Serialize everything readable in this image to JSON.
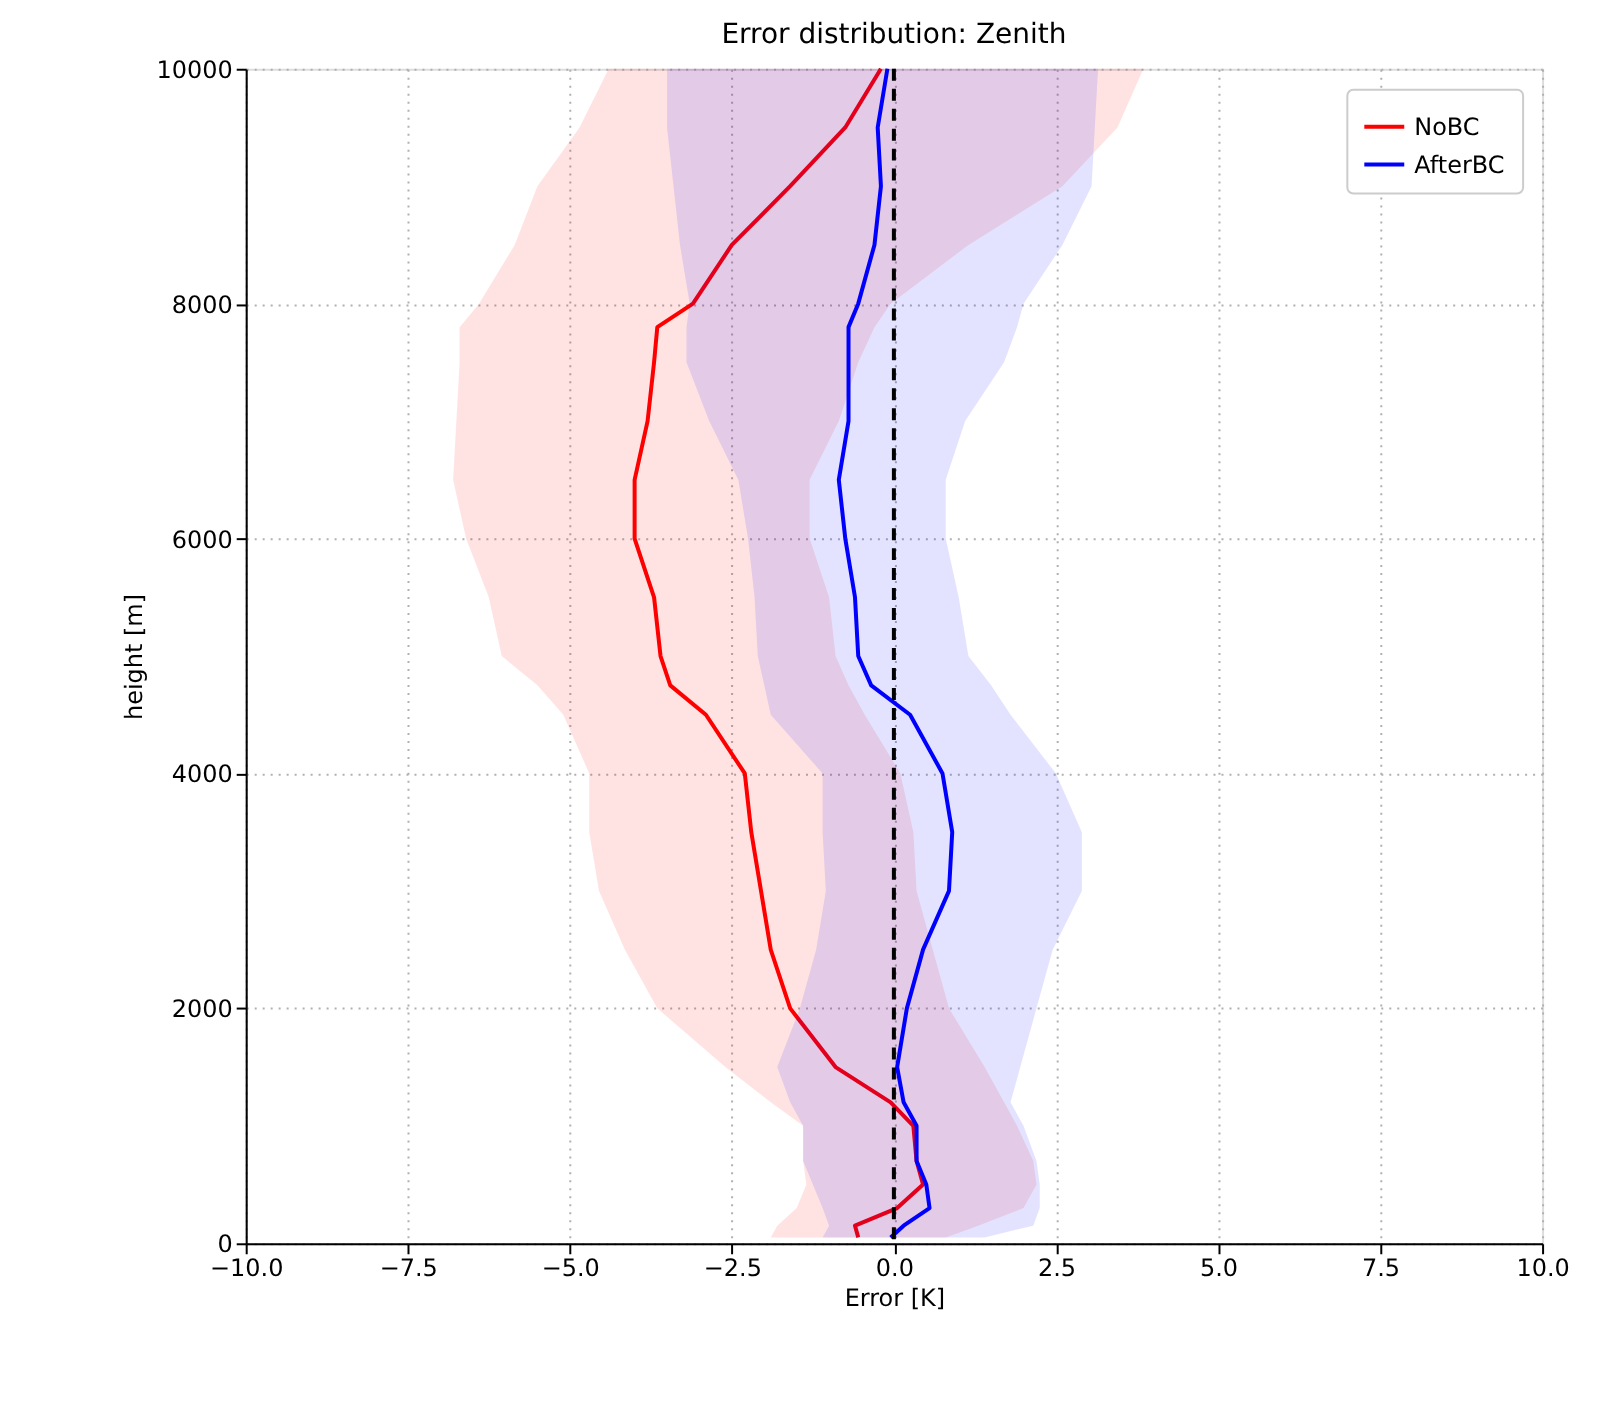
{
  "chart_data": {
    "type": "line",
    "orientation": "horizontal",
    "title": "Error distribution: Zenith",
    "xlabel": "Error [K]",
    "ylabel": "height [m]",
    "x": [
      50,
      150,
      300,
      500,
      700,
      1000,
      1200,
      1500,
      2000,
      2500,
      3000,
      3500,
      4000,
      4500,
      4750,
      5000,
      5500,
      6000,
      6500,
      7000,
      7500,
      7800,
      8000,
      8500,
      9000,
      9500,
      10000
    ],
    "series": [
      {
        "name": "NoBC",
        "color": "#ff0000",
        "values": [
          -0.55,
          -0.6,
          0.05,
          0.45,
          0.35,
          0.3,
          -0.05,
          -0.9,
          -1.6,
          -1.9,
          -2.05,
          -2.2,
          -2.3,
          -2.9,
          -3.45,
          -3.6,
          -3.7,
          -4.0,
          -4.0,
          -3.8,
          -3.7,
          -3.65,
          -3.1,
          -2.5,
          -1.6,
          -0.75,
          -0.2
        ],
        "lower": [
          -1.9,
          -1.8,
          -1.5,
          -1.35,
          -1.4,
          -1.4,
          -1.9,
          -2.6,
          -3.65,
          -4.15,
          -4.55,
          -4.7,
          -4.7,
          -5.1,
          -5.5,
          -6.05,
          -6.25,
          -6.6,
          -6.8,
          -6.75,
          -6.7,
          -6.7,
          -6.4,
          -5.85,
          -5.5,
          -4.85,
          -4.4
        ],
        "upper": [
          0.8,
          1.3,
          2.0,
          2.2,
          2.15,
          1.9,
          1.7,
          1.4,
          0.85,
          0.6,
          0.35,
          0.3,
          0.1,
          -0.45,
          -0.7,
          -0.9,
          -1.0,
          -1.3,
          -1.3,
          -0.85,
          -0.55,
          -0.3,
          -0.05,
          1.15,
          2.6,
          3.45,
          3.85
        ]
      },
      {
        "name": "AfterBC",
        "color": "#0000ff",
        "values": [
          -0.05,
          0.15,
          0.55,
          0.5,
          0.35,
          0.35,
          0.15,
          0.05,
          0.2,
          0.45,
          0.85,
          0.9,
          0.75,
          0.25,
          -0.35,
          -0.55,
          -0.6,
          -0.75,
          -0.85,
          -0.7,
          -0.7,
          -0.7,
          -0.55,
          -0.3,
          -0.2,
          -0.25,
          -0.1
        ],
        "lower": [
          -1.1,
          -1.0,
          -1.1,
          -1.25,
          -1.4,
          -1.4,
          -1.6,
          -1.8,
          -1.45,
          -1.2,
          -1.05,
          -1.1,
          -1.1,
          -1.9,
          -2.0,
          -2.1,
          -2.15,
          -2.25,
          -2.4,
          -2.85,
          -3.2,
          -3.2,
          -3.15,
          -3.3,
          -3.4,
          -3.5,
          -3.5
        ],
        "upper": [
          1.4,
          2.15,
          2.25,
          2.25,
          2.2,
          2.0,
          1.8,
          1.95,
          2.2,
          2.45,
          2.9,
          2.9,
          2.5,
          1.8,
          1.5,
          1.15,
          1.0,
          0.8,
          0.8,
          1.1,
          1.7,
          1.9,
          2.0,
          2.6,
          3.05,
          3.1,
          3.15
        ]
      }
    ],
    "xlim": [
      -10,
      10
    ],
    "xticks": [
      {
        "value": -10,
        "label": "−10.0"
      },
      {
        "value": -7.5,
        "label": "−7.5"
      },
      {
        "value": -5,
        "label": "−5.0"
      },
      {
        "value": -2.5,
        "label": "−2.5"
      },
      {
        "value": 0,
        "label": "0.0"
      },
      {
        "value": 2.5,
        "label": "2.5"
      },
      {
        "value": 5,
        "label": "5.0"
      },
      {
        "value": 7.5,
        "label": "7.5"
      },
      {
        "value": 10,
        "label": "10.0"
      }
    ],
    "ylim": [
      0,
      10000
    ],
    "yticks": [
      0,
      2000,
      4000,
      6000,
      8000,
      10000
    ],
    "ref_lines": [
      {
        "axis": "x",
        "value": 0,
        "color": "#000000",
        "line_style": "dashed"
      }
    ],
    "grid": true,
    "legend": "top right",
    "line_style": "solid"
  }
}
